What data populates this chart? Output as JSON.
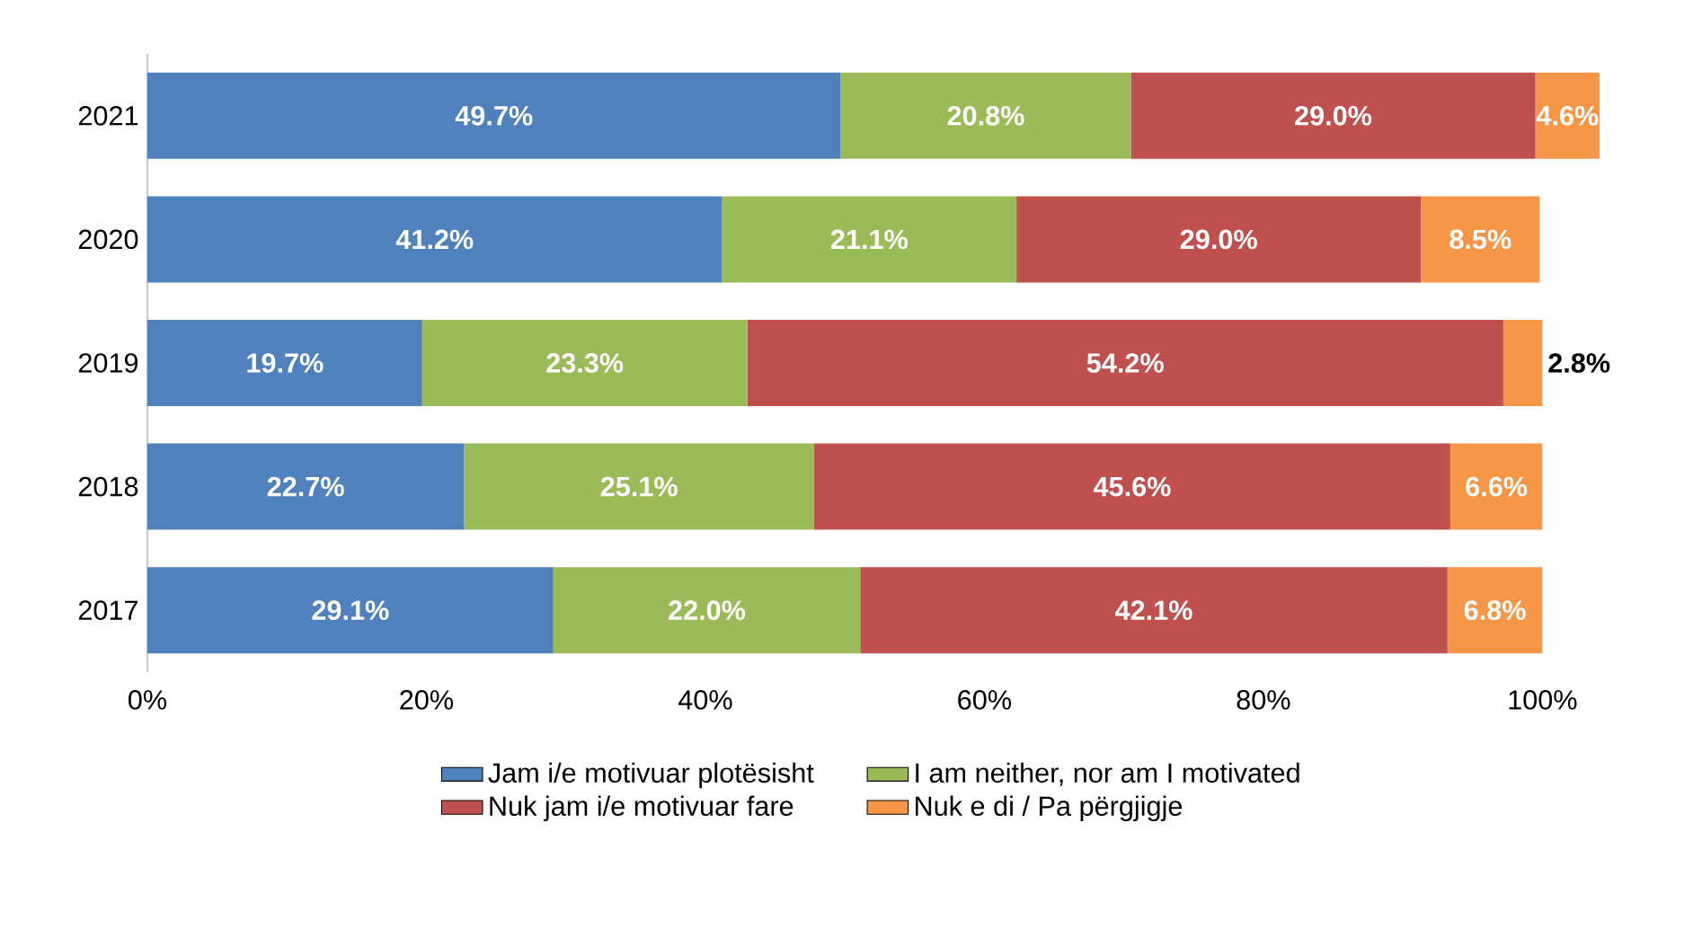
{
  "chart_data": {
    "type": "bar",
    "orientation": "horizontal",
    "stacked": true,
    "categories": [
      "2021",
      "2020",
      "2019",
      "2018",
      "2017"
    ],
    "series": [
      {
        "name": "Jam i/e motivuar plotësisht",
        "color": "#4f81bd",
        "values": [
          49.7,
          41.2,
          19.7,
          22.7,
          29.1
        ],
        "value_labels": [
          "49.7%",
          "41.2%",
          "19.7%",
          "22.7%",
          "29.1%"
        ]
      },
      {
        "name": "I am neither, nor am I motivated",
        "color": "#9bbb59",
        "values": [
          20.8,
          21.1,
          23.3,
          25.1,
          22.0
        ],
        "value_labels": [
          "20.8%",
          "21.1%",
          "23.3%",
          "25.1%",
          "22.0%"
        ]
      },
      {
        "name": "Nuk jam i/e motivuar fare",
        "color": "#c0504d",
        "values": [
          29.0,
          29.0,
          54.2,
          45.6,
          42.1
        ],
        "value_labels": [
          "29.0%",
          "29.0%",
          "54.2%",
          "45.6%",
          "42.1%"
        ]
      },
      {
        "name": "Nuk e di / Pa përgjigje",
        "color": "#f79646",
        "values": [
          4.6,
          8.5,
          2.8,
          6.6,
          6.8
        ],
        "value_labels": [
          "4.6%",
          "8.5%",
          "2.8%",
          "6.6%",
          "6.8%"
        ]
      }
    ],
    "xlim": [
      0,
      104.1
    ],
    "xticks": [
      {
        "value": 0,
        "label": "0%"
      },
      {
        "value": 20,
        "label": "20%"
      },
      {
        "value": 40,
        "label": "40%"
      },
      {
        "value": 60,
        "label": "60%"
      },
      {
        "value": 80,
        "label": "80%"
      },
      {
        "value": 100,
        "label": "100%"
      }
    ],
    "legend": "bottom",
    "grid": false
  }
}
